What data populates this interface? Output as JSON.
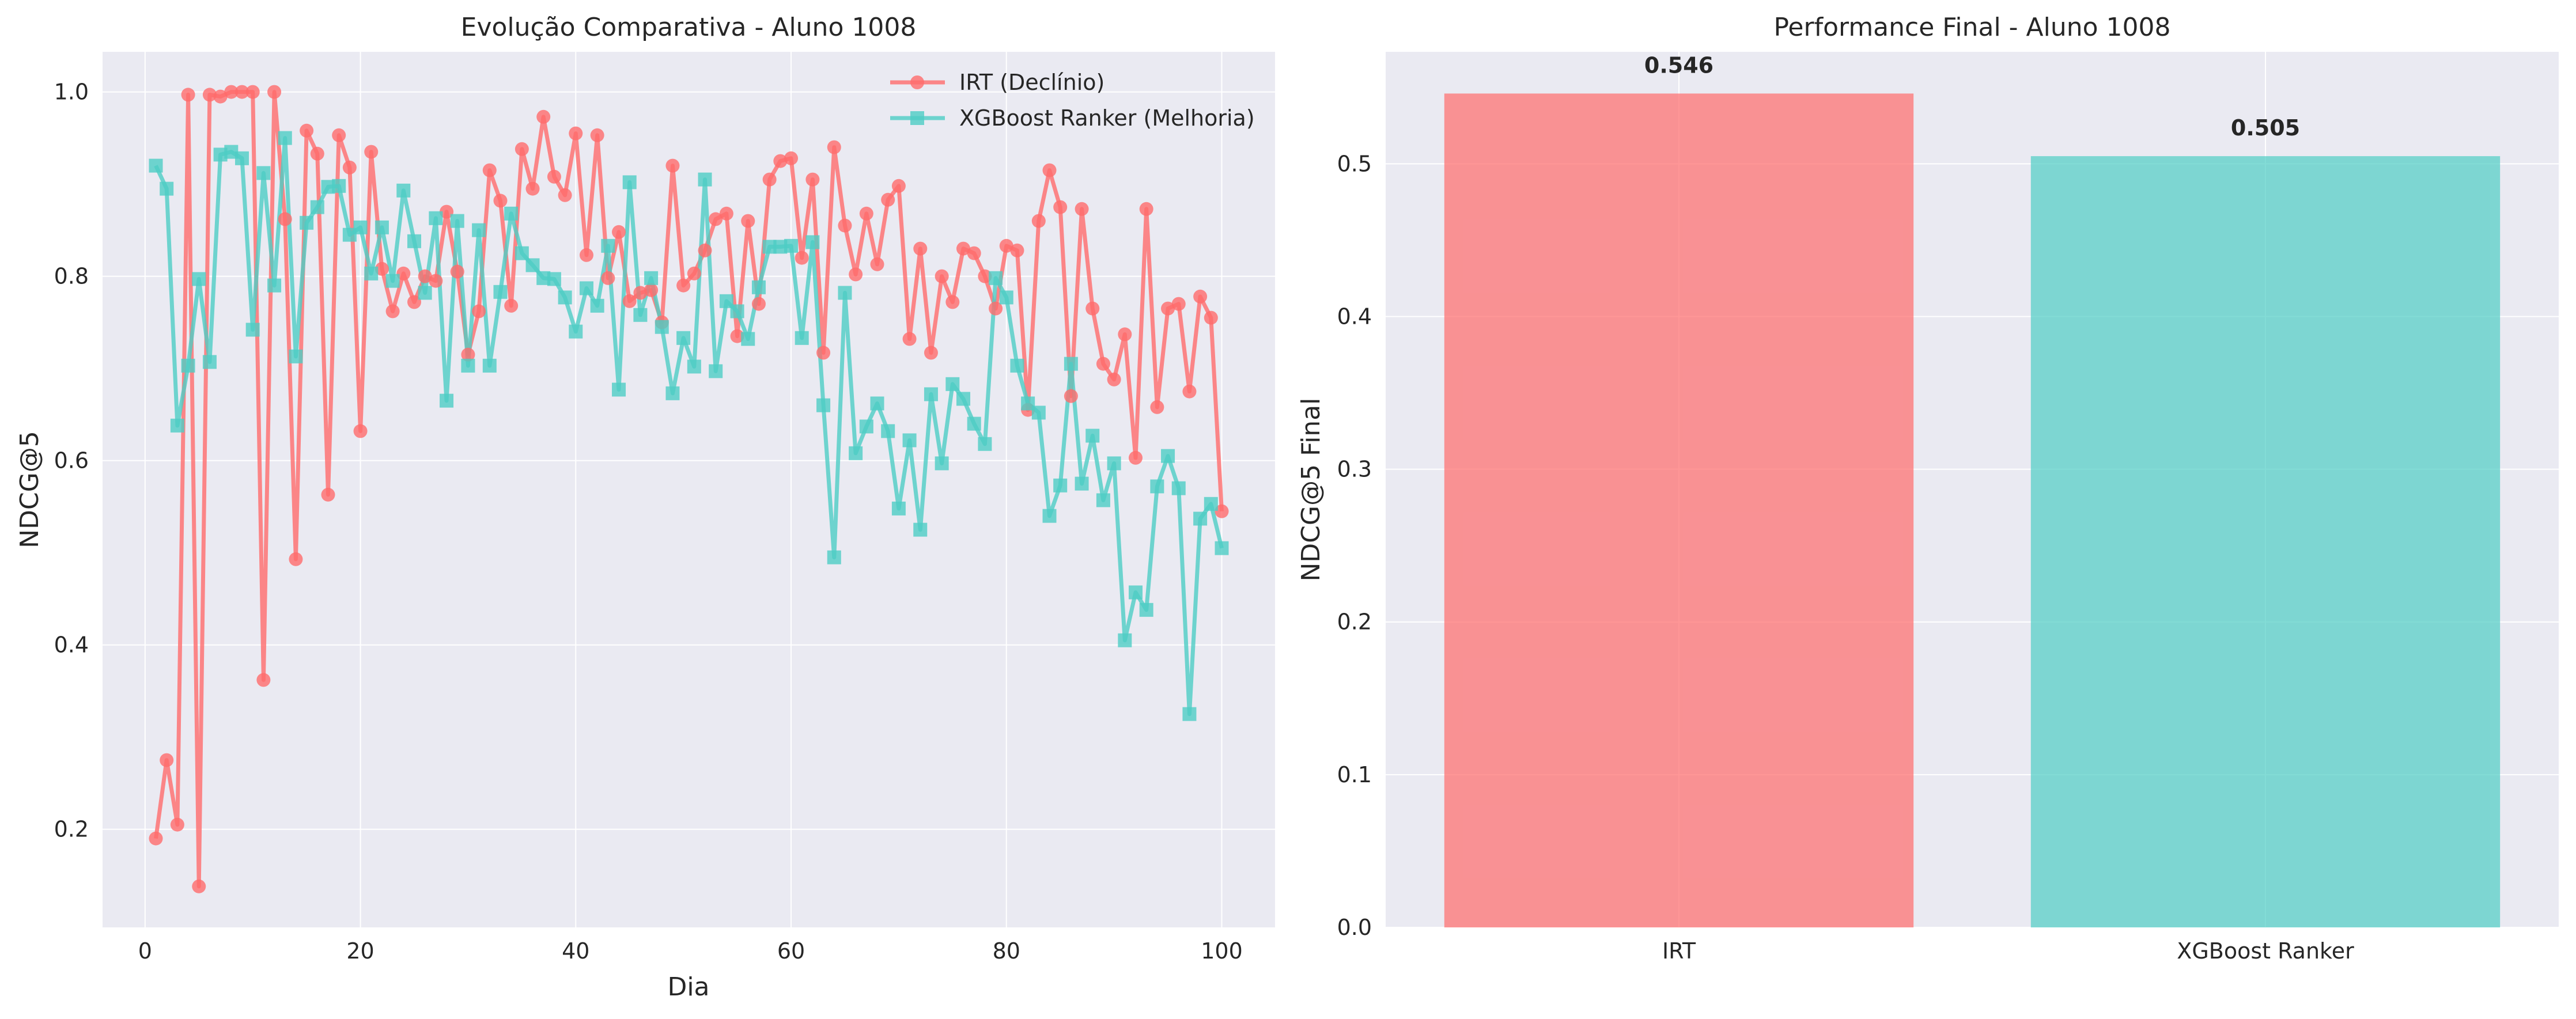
{
  "colors": {
    "irt": "#ff6b6b",
    "xgb": "#4ecdc4",
    "axes_bg": "#eaeaf2",
    "grid": "#ffffff",
    "text": "#262626"
  },
  "chart_data": [
    {
      "type": "line",
      "title": "Evolução Comparativa - Aluno 1008",
      "xlabel": "Dia",
      "ylabel": "NDCG@5",
      "xlim": [
        -3.95,
        104.95
      ],
      "ylim": [
        0.0935,
        1.0435
      ],
      "xticks": [
        0,
        20,
        40,
        60,
        80,
        100
      ],
      "yticks": [
        0.2,
        0.4,
        0.6,
        0.8,
        1.0
      ],
      "ytick_labels": [
        "0.2",
        "0.4",
        "0.6",
        "0.8",
        "1.0"
      ],
      "grid": true,
      "legend": "top-right",
      "x": [
        1,
        2,
        3,
        4,
        5,
        6,
        7,
        8,
        9,
        10,
        11,
        12,
        13,
        14,
        15,
        16,
        17,
        18,
        19,
        20,
        21,
        22,
        23,
        24,
        25,
        26,
        27,
        28,
        29,
        30,
        31,
        32,
        33,
        34,
        35,
        36,
        37,
        38,
        39,
        40,
        41,
        42,
        43,
        44,
        45,
        46,
        47,
        48,
        49,
        50,
        51,
        52,
        53,
        54,
        55,
        56,
        57,
        58,
        59,
        60,
        61,
        62,
        63,
        64,
        65,
        66,
        67,
        68,
        69,
        70,
        71,
        72,
        73,
        74,
        75,
        76,
        77,
        78,
        79,
        80,
        81,
        82,
        83,
        84,
        85,
        86,
        87,
        88,
        89,
        90,
        91,
        92,
        93,
        94,
        95,
        96,
        97,
        98,
        99,
        100
      ],
      "series": [
        {
          "name": "IRT (Declínio)",
          "marker": "circle",
          "color": "#ff6b6b",
          "values": [
            0.19,
            0.275,
            0.205,
            0.997,
            0.138,
            0.997,
            0.995,
            1.0,
            1.0,
            1.0,
            0.362,
            1.0,
            0.862,
            0.493,
            0.958,
            0.933,
            0.563,
            0.953,
            0.918,
            0.632,
            0.935,
            0.808,
            0.762,
            0.803,
            0.772,
            0.8,
            0.795,
            0.87,
            0.805,
            0.715,
            0.762,
            0.915,
            0.882,
            0.768,
            0.938,
            0.895,
            0.973,
            0.908,
            0.888,
            0.955,
            0.823,
            0.953,
            0.798,
            0.848,
            0.773,
            0.782,
            0.785,
            0.75,
            0.92,
            0.79,
            0.803,
            0.828,
            0.862,
            0.868,
            0.735,
            0.86,
            0.77,
            0.905,
            0.925,
            0.928,
            0.82,
            0.905,
            0.717,
            0.94,
            0.855,
            0.802,
            0.868,
            0.813,
            0.883,
            0.898,
            0.732,
            0.83,
            0.717,
            0.8,
            0.772,
            0.83,
            0.825,
            0.8,
            0.765,
            0.833,
            0.828,
            0.655,
            0.86,
            0.915,
            0.875,
            0.67,
            0.873,
            0.765,
            0.705,
            0.688,
            0.737,
            0.603,
            0.873,
            0.658,
            0.765,
            0.77,
            0.675,
            0.778,
            0.755,
            0.545
          ]
        },
        {
          "name": "XGBoost Ranker (Melhoria)",
          "marker": "square",
          "color": "#4ecdc4",
          "values": [
            0.92,
            0.895,
            0.638,
            0.703,
            0.797,
            0.707,
            0.932,
            0.935,
            0.928,
            0.742,
            0.912,
            0.79,
            0.95,
            0.713,
            0.858,
            0.875,
            0.897,
            0.898,
            0.845,
            0.853,
            0.803,
            0.853,
            0.795,
            0.893,
            0.838,
            0.782,
            0.863,
            0.665,
            0.86,
            0.703,
            0.85,
            0.703,
            0.783,
            0.868,
            0.825,
            0.812,
            0.798,
            0.797,
            0.777,
            0.74,
            0.787,
            0.768,
            0.833,
            0.677,
            0.902,
            0.758,
            0.798,
            0.745,
            0.673,
            0.733,
            0.702,
            0.905,
            0.697,
            0.773,
            0.762,
            0.732,
            0.788,
            0.832,
            0.832,
            0.833,
            0.733,
            0.837,
            0.66,
            0.495,
            0.782,
            0.608,
            0.637,
            0.662,
            0.632,
            0.548,
            0.622,
            0.525,
            0.672,
            0.597,
            0.683,
            0.667,
            0.64,
            0.618,
            0.798,
            0.777,
            0.703,
            0.662,
            0.652,
            0.54,
            0.573,
            0.705,
            0.575,
            0.627,
            0.557,
            0.597,
            0.405,
            0.457,
            0.438,
            0.572,
            0.605,
            0.57,
            0.325,
            0.537,
            0.553,
            0.505
          ]
        }
      ]
    },
    {
      "type": "bar",
      "title": "Performance Final - Aluno 1008",
      "xlabel": "",
      "ylabel": "NDCG@5 Final",
      "categories": [
        "IRT",
        "XGBoost Ranker"
      ],
      "values": [
        0.546,
        0.505
      ],
      "value_labels": [
        "0.546",
        "0.505"
      ],
      "colors": [
        "#ff6b6b",
        "#4ecdc4"
      ],
      "ylim": [
        0.0,
        0.5733
      ],
      "yticks": [
        0.0,
        0.1,
        0.2,
        0.3,
        0.4,
        0.5
      ],
      "ytick_labels": [
        "0.0",
        "0.1",
        "0.2",
        "0.3",
        "0.4",
        "0.5"
      ],
      "grid": true
    }
  ]
}
